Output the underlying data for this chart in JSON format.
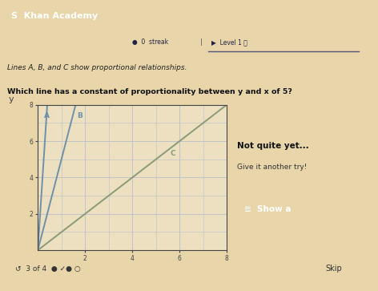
{
  "title_text": "Lines A, B, and C show proportional relationships.",
  "question_text": "Which line has a constant of proportionality between y and x of 5?",
  "xlim": [
    0,
    8
  ],
  "ylim": [
    0,
    8
  ],
  "xticks": [
    2,
    4,
    6,
    8
  ],
  "yticks": [
    2,
    4,
    6,
    8
  ],
  "lines": [
    {
      "label": "A",
      "slope": 20,
      "color": "#7090a8",
      "lw": 1.4
    },
    {
      "label": "B",
      "slope": 5,
      "color": "#7090a8",
      "lw": 1.4
    },
    {
      "label": "C",
      "slope": 1,
      "color": "#8a9a7a",
      "lw": 1.4
    }
  ],
  "bg_color": "#e8d5aa",
  "plot_bg_color": "#ede0c0",
  "grid_color": "#b8bfc8",
  "axis_color": "#444444",
  "feedback_box": {
    "text1": "Not quite yet...",
    "text2": "Give it another try!",
    "bg_color": "#f8f8f8",
    "border_color": "#dddddd"
  },
  "show_button": {
    "text": "  Show a",
    "bg_color": "#1a56db",
    "text_color": "#ffffff"
  },
  "header_bg": "#2060c0",
  "progress_bar_bg": "#d4b87a",
  "khan_text": "S  Khan Academy",
  "progress_text": "0",
  "level_text": "Level 1",
  "bottom_text": "3 of 4",
  "skip_text": "Skip"
}
